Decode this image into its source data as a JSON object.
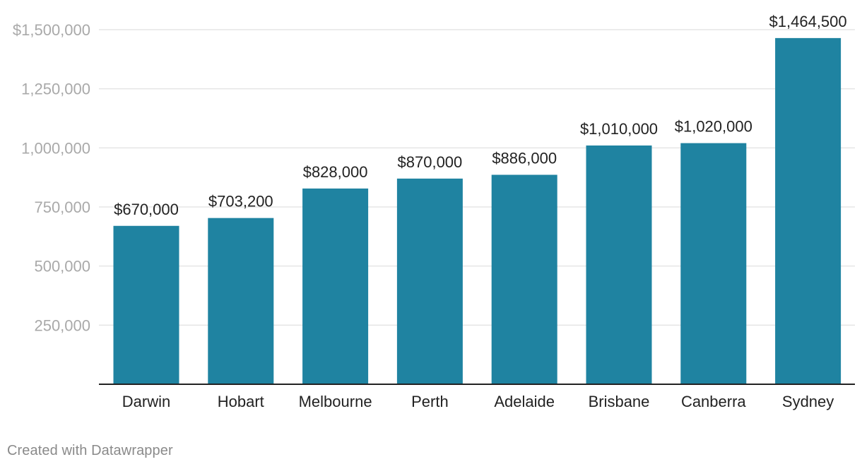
{
  "chart_data": {
    "type": "bar",
    "categories": [
      "Darwin",
      "Hobart",
      "Melbourne",
      "Perth",
      "Adelaide",
      "Brisbane",
      "Canberra",
      "Sydney"
    ],
    "values": [
      670000,
      703200,
      828000,
      870000,
      886000,
      1010000,
      1020000,
      1464500
    ],
    "value_labels": [
      "$670,000",
      "$703,200",
      "$828,000",
      "$870,000",
      "$886,000",
      "$1,010,000",
      "$1,020,000",
      "$1,464,500"
    ],
    "y_ticks": [
      250000,
      500000,
      750000,
      1000000,
      1250000,
      1500000
    ],
    "y_tick_labels": [
      "250,000",
      "500,000",
      "750,000",
      "1,000,000",
      "1,250,000",
      "$1,500,000"
    ],
    "ylim": [
      0,
      1500000
    ],
    "grid": true,
    "colors": {
      "bar": "#1f83a1",
      "grid": "#e5e5e5",
      "axis": "#222222",
      "tick_label": "#a9a9a9",
      "value_label": "#222222",
      "category_label": "#222222"
    }
  },
  "footer": {
    "credit": "Created with Datawrapper"
  }
}
